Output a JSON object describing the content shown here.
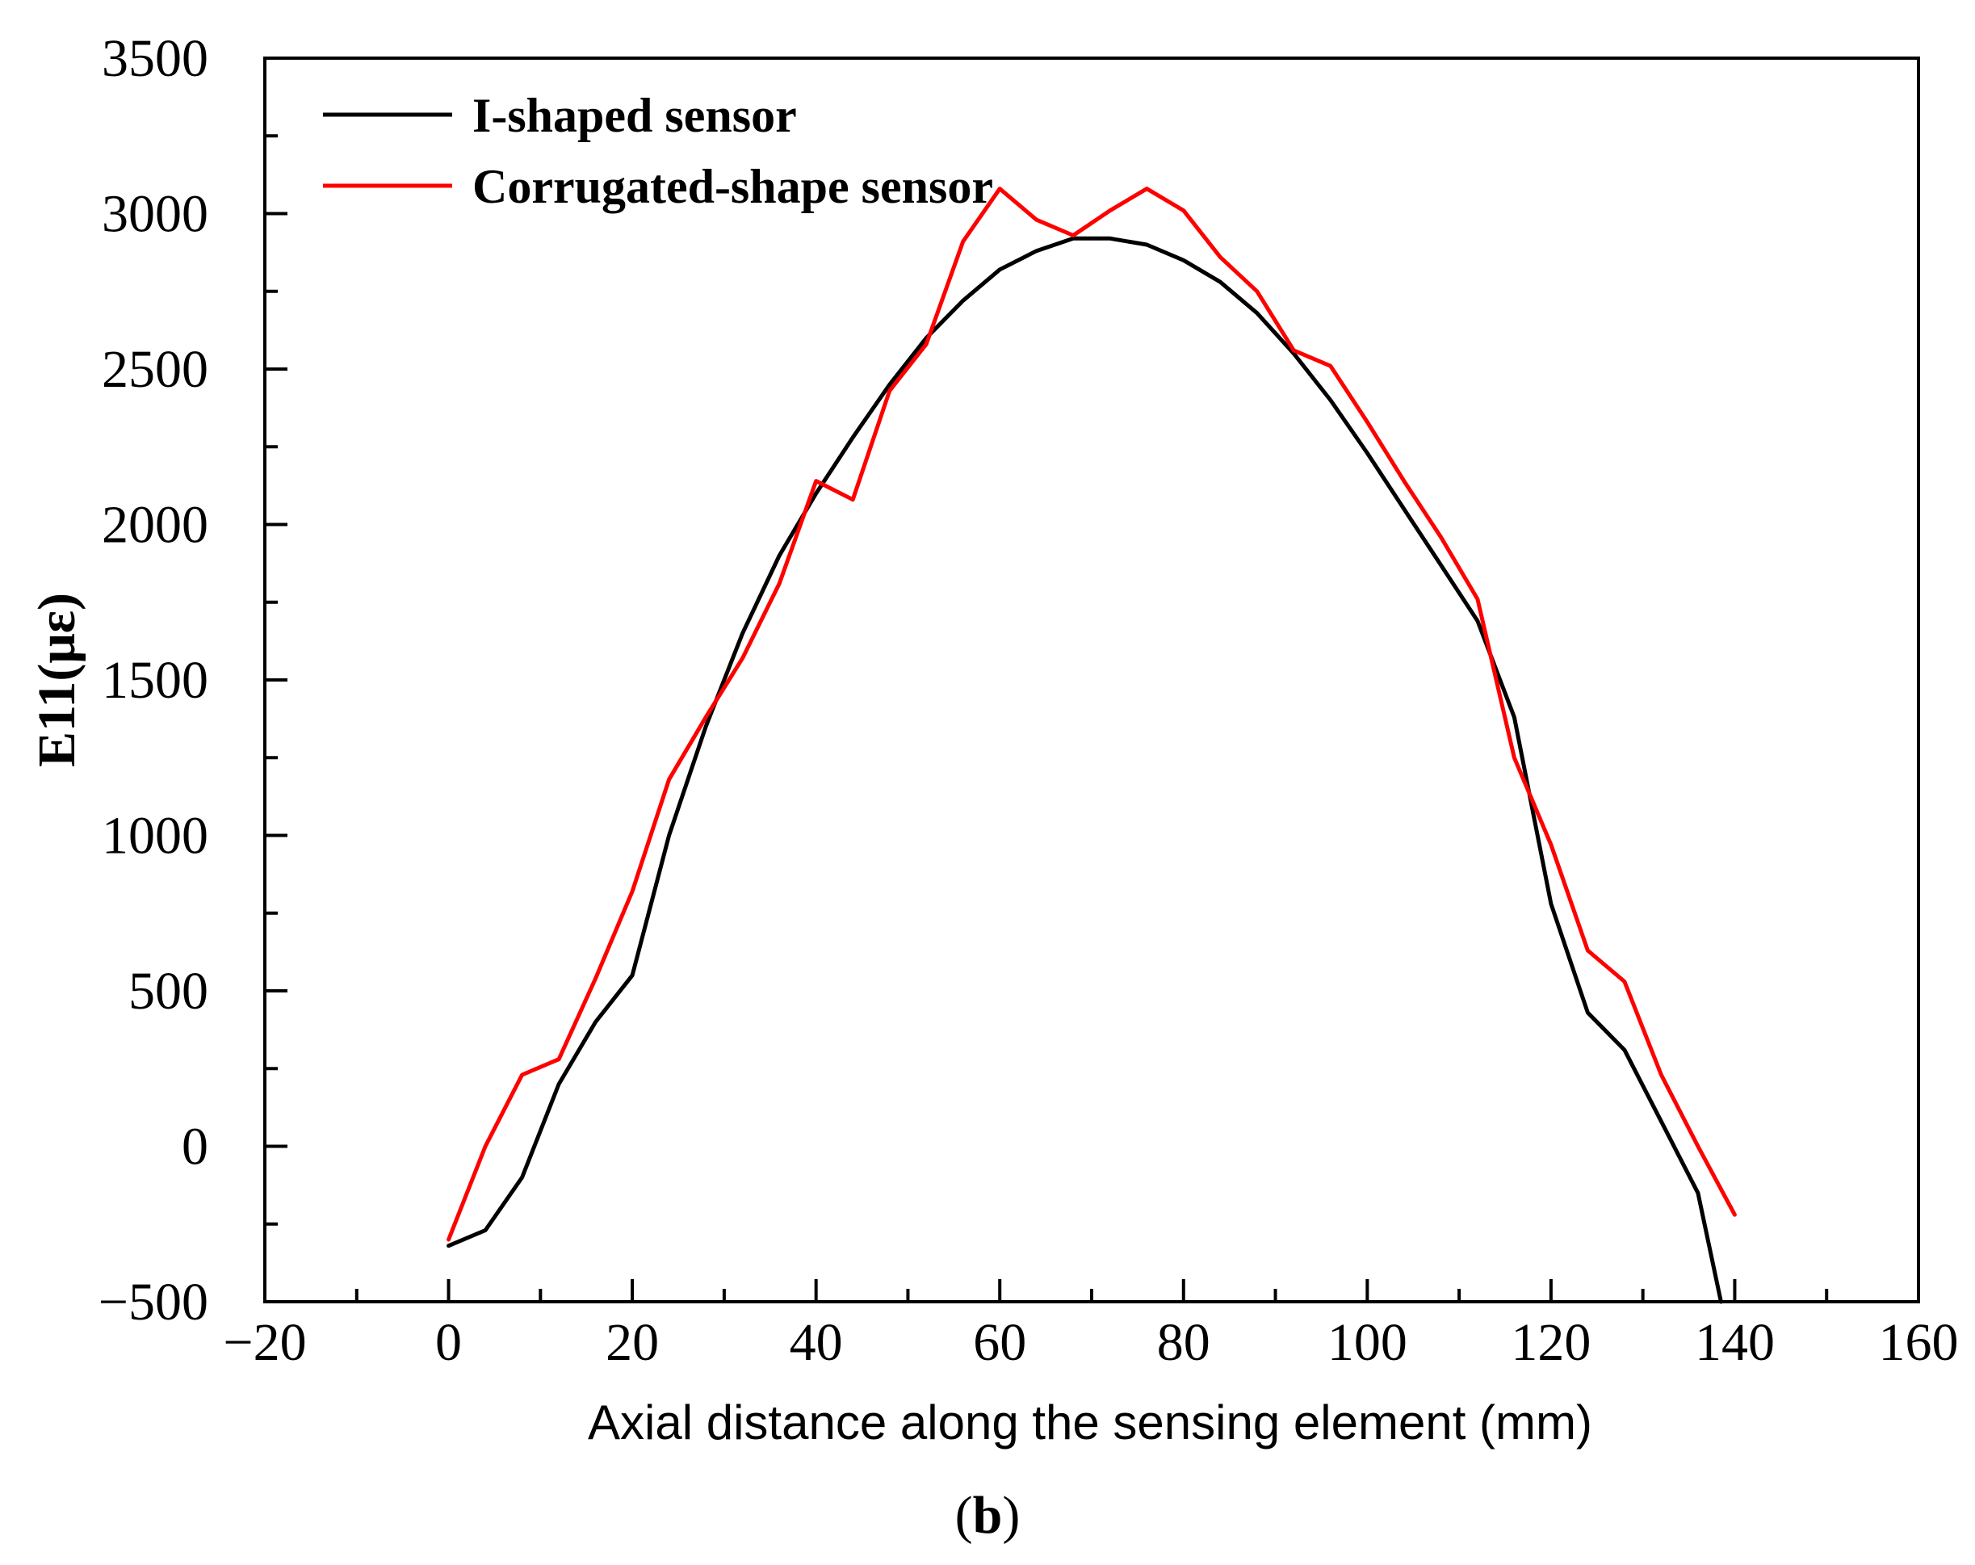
{
  "chart_data": {
    "type": "line",
    "title": "",
    "xlabel": "Axial distance along the sensing element (mm)",
    "ylabel": "E11(με)",
    "xlim": [
      -20,
      160
    ],
    "ylim": [
      -500,
      3500
    ],
    "xticks": [
      -20,
      0,
      20,
      40,
      60,
      80,
      100,
      120,
      140,
      160
    ],
    "yticks": [
      -500,
      0,
      500,
      1000,
      1500,
      2000,
      2500,
      3000,
      3500
    ],
    "xtick_labels": [
      "−20",
      "0",
      "20",
      "40",
      "60",
      "80",
      "100",
      "120",
      "140",
      "160"
    ],
    "ytick_labels": [
      "−500",
      "0",
      "500",
      "1000",
      "1500",
      "2000",
      "2500",
      "3000",
      "3500"
    ],
    "legend_position": "top-left",
    "series": [
      {
        "name": "I-shaped sensor",
        "color": "#000000",
        "x": [
          0,
          4,
          8,
          12,
          16,
          20,
          24,
          28,
          32,
          36,
          40,
          44,
          48,
          52,
          56,
          60,
          64,
          68,
          72,
          76,
          80,
          84,
          88,
          92,
          96,
          100,
          104,
          108,
          112,
          116,
          120,
          124,
          128,
          132,
          136,
          138.5
        ],
        "y": [
          -320,
          -270,
          -100,
          200,
          400,
          550,
          1000,
          1350,
          1650,
          1900,
          2100,
          2280,
          2450,
          2600,
          2720,
          2820,
          2880,
          2920,
          2920,
          2900,
          2850,
          2780,
          2680,
          2550,
          2400,
          2230,
          2050,
          1870,
          1690,
          1380,
          780,
          430,
          310,
          80,
          -150,
          -500
        ]
      },
      {
        "name": "Corrugated-shape sensor",
        "color": "#ff0000",
        "x": [
          0,
          4,
          8,
          12,
          16,
          20,
          24,
          28,
          32,
          36,
          40,
          44,
          48,
          52,
          56,
          60,
          64,
          68,
          72,
          76,
          80,
          84,
          88,
          92,
          96,
          100,
          104,
          108,
          112,
          116,
          120,
          124,
          128,
          132,
          136,
          140
        ],
        "y": [
          -300,
          0,
          230,
          280,
          540,
          820,
          1180,
          1380,
          1570,
          1810,
          2140,
          2080,
          2430,
          2580,
          2910,
          3080,
          2980,
          2930,
          3010,
          3080,
          3010,
          2860,
          2750,
          2560,
          2510,
          2330,
          2140,
          1960,
          1760,
          1250,
          970,
          630,
          530,
          230,
          0,
          -220
        ]
      }
    ],
    "caption": "(b)"
  }
}
